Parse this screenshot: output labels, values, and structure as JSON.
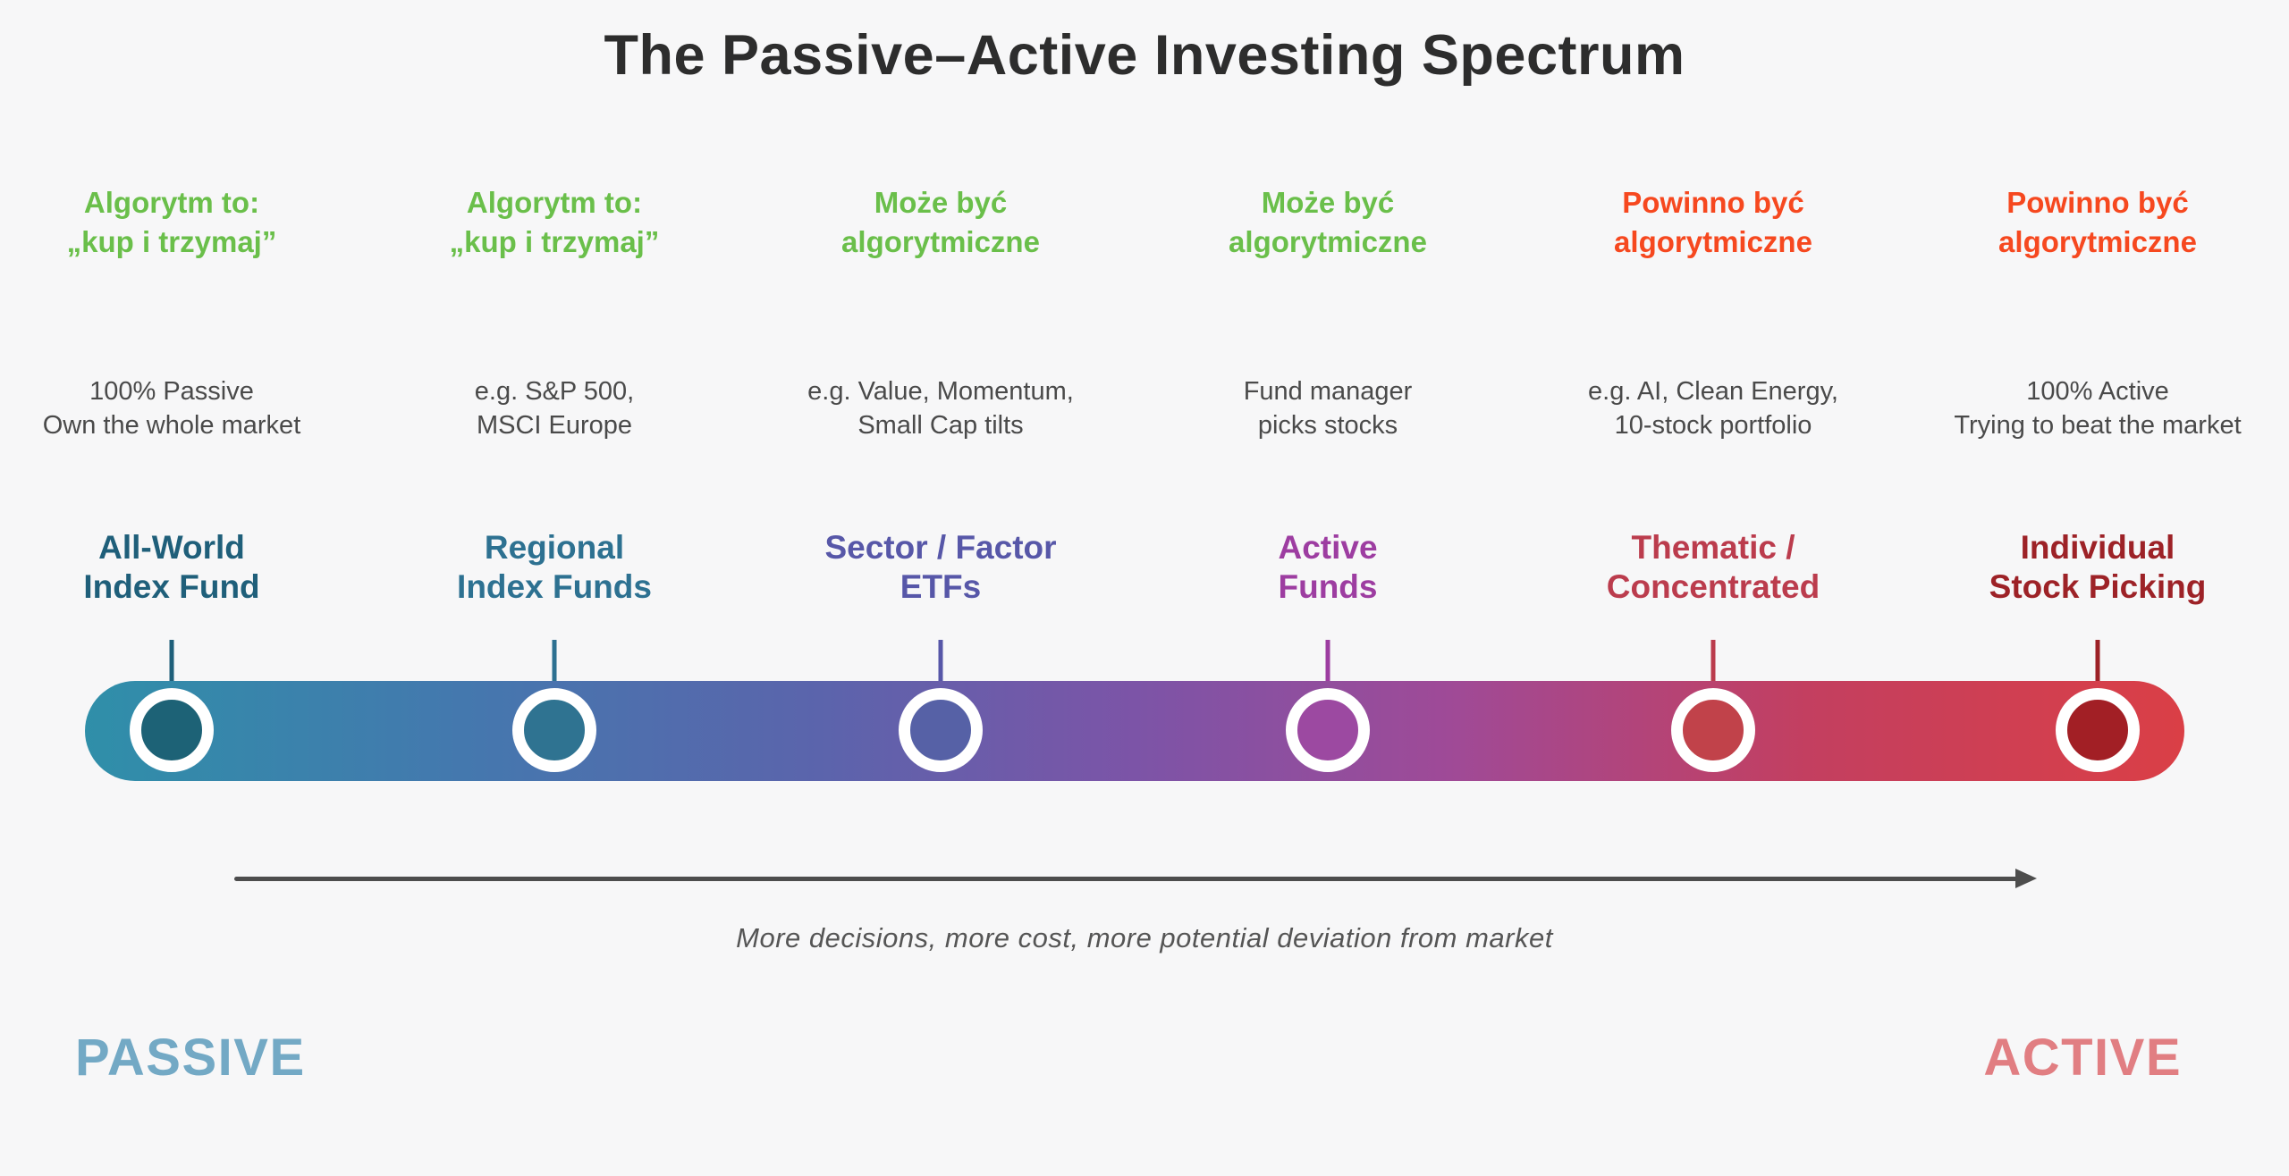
{
  "page": {
    "background": "#f7f7f8"
  },
  "title": {
    "text": "The Passive–Active Investing Spectrum",
    "color": "#2d2d2d"
  },
  "text_colors": {
    "description": "#4a4a4a"
  },
  "columns": [
    {
      "algo_note": "Algorytm to:\n„kup i trzymaj”",
      "algo_color": "#6abf4a",
      "description": "100% Passive\nOwn the whole market",
      "heading": "All-World\nIndex Fund",
      "heading_color": "#1f5f7a",
      "node_color": "#1d6276"
    },
    {
      "algo_note": "Algorytm to:\n„kup i trzymaj”",
      "algo_color": "#6abf4a",
      "description": "e.g. S&P 500,\nMSCI Europe",
      "heading": "Regional\nIndex Funds",
      "heading_color": "#2d7191",
      "node_color": "#2f7391"
    },
    {
      "algo_note": "Może być\nalgorytmiczne",
      "algo_color": "#6abf4a",
      "description": "e.g. Value, Momentum,\nSmall Cap tilts",
      "heading": "Sector / Factor\nETFs",
      "heading_color": "#5757a8",
      "node_color": "#5661a6"
    },
    {
      "algo_note": "Może być\nalgorytmiczne",
      "algo_color": "#6abf4a",
      "description": "Fund manager\npicks stocks",
      "heading": "Active\nFunds",
      "heading_color": "#9d3da1",
      "node_color": "#9c49a1"
    },
    {
      "algo_note": "Powinno być\nalgorytmiczne",
      "algo_color": "#f6481f",
      "description": "e.g. AI, Clean Energy,\n10-stock portfolio",
      "heading": "Thematic /\nConcentrated",
      "heading_color": "#bb3c4d",
      "node_color": "#c1424a"
    },
    {
      "algo_note": "Powinno być\nalgorytmiczne",
      "algo_color": "#f6481f",
      "description": "100% Active\nTrying to beat the market",
      "heading": "Individual\nStock Picking",
      "heading_color": "#9d2227",
      "node_color": "#a21f25"
    }
  ],
  "spectrum": {
    "ring_color": "#ffffff",
    "gradient": [
      "#2f8fa9 0%",
      "#4478ae 18%",
      "#5b64ac 35%",
      "#7c54a7 50%",
      "#9f4a97 65%",
      "#c33f60 82%",
      "#da3f46 100%"
    ]
  },
  "arrow": {
    "color": "#4d4d4d",
    "caption": "More decisions, more cost, more potential deviation from market",
    "caption_color": "#555555"
  },
  "footer": {
    "passive_label": "PASSIVE",
    "passive_color": "#73a9c5",
    "active_label": "ACTIVE",
    "active_color": "#e17e82"
  }
}
